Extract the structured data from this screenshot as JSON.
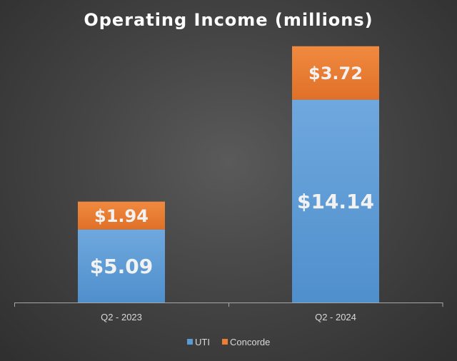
{
  "chart_data": {
    "type": "bar",
    "stacked": true,
    "title": "Operating Income (millions)",
    "categories": [
      "Q2 - 2023",
      "Q2 - 2024"
    ],
    "series": [
      {
        "name": "UTI",
        "values": [
          5.09,
          14.14
        ],
        "labels": [
          "$5.09",
          "$14.14"
        ],
        "color": "#5b9bd5"
      },
      {
        "name": "Concorde",
        "values": [
          1.94,
          3.72
        ],
        "labels": [
          "$1.94",
          "$3.72"
        ],
        "color": "#ed7d31"
      }
    ],
    "xlabel": "",
    "ylabel": "",
    "ylim": [
      0,
      18
    ],
    "grid": false,
    "legend": "bottom"
  }
}
